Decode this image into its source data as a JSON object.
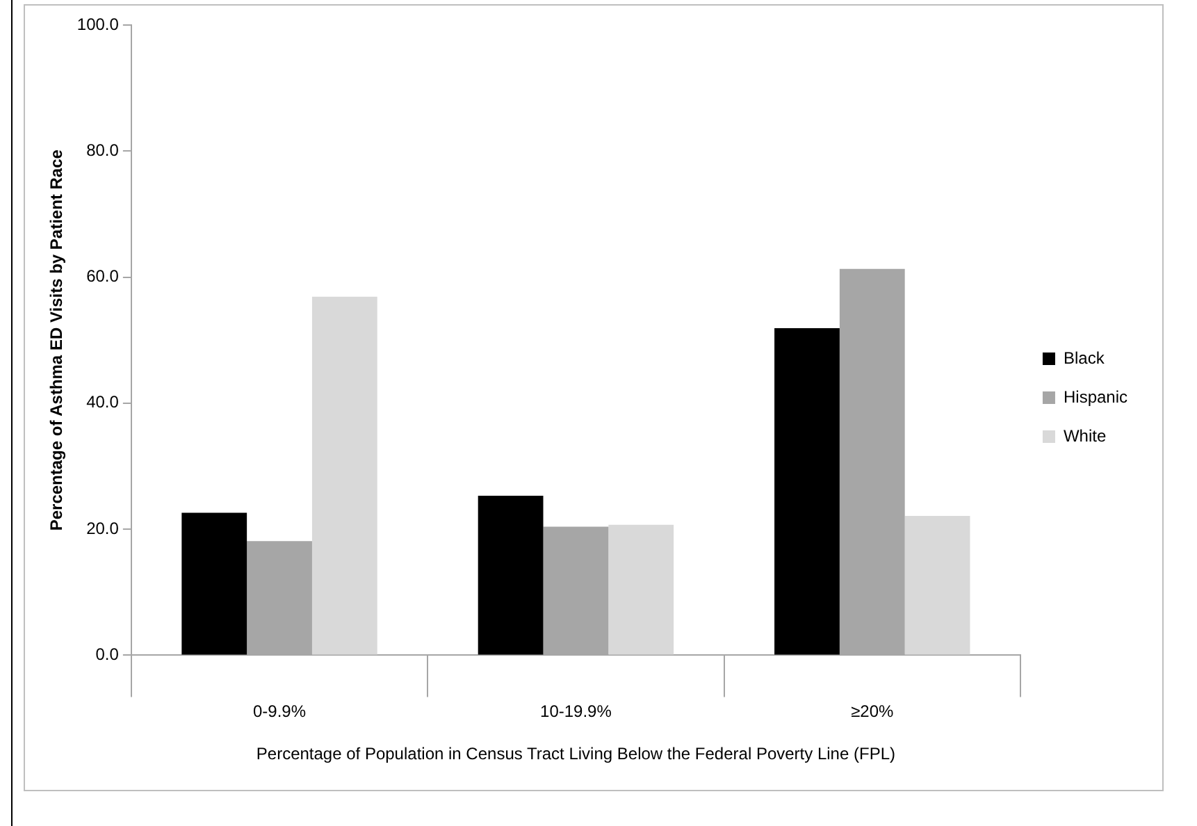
{
  "chart_data": {
    "type": "bar",
    "xlabel": "Percentage of Population in Census Tract Living Below the Federal Poverty Line (FPL)",
    "ylabel": "Percentage of Asthma ED Visits by Patient Race",
    "categories": [
      "0-9.9%",
      "10-19.9%",
      "≥20%"
    ],
    "series": [
      {
        "name": "Black",
        "color": "#000000",
        "values": [
          22.6,
          25.3,
          51.9
        ]
      },
      {
        "name": "Hispanic",
        "color": "#a6a6a6",
        "values": [
          18.1,
          20.4,
          61.3
        ]
      },
      {
        "name": "White",
        "color": "#d9d9d9",
        "values": [
          56.9,
          20.7,
          22.1
        ]
      }
    ],
    "ylim": [
      0,
      100
    ],
    "yticks": [
      {
        "value": 0,
        "label": "0.0"
      },
      {
        "value": 20,
        "label": "20.0"
      },
      {
        "value": 40,
        "label": "40.0"
      },
      {
        "value": 60,
        "label": "60.0"
      },
      {
        "value": 80,
        "label": "80.0"
      },
      {
        "value": 100,
        "label": "100.0"
      }
    ],
    "grid": false,
    "legend": "right"
  }
}
